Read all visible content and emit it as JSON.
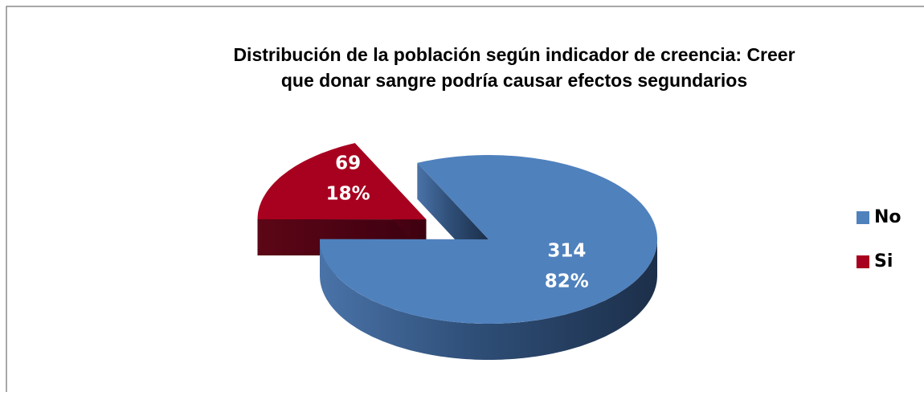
{
  "chart_data": {
    "type": "pie3d",
    "title": [
      "Distribución de la población según indicador de creencia: Creer",
      "que donar sangre podría causar efectos segundarios"
    ],
    "categories": [
      "No",
      "Si"
    ],
    "values": [
      314,
      69
    ],
    "percent_labels": [
      "82%",
      "18%"
    ],
    "colors": [
      "#4f81bd",
      "#a8001f"
    ],
    "legend": "right"
  }
}
